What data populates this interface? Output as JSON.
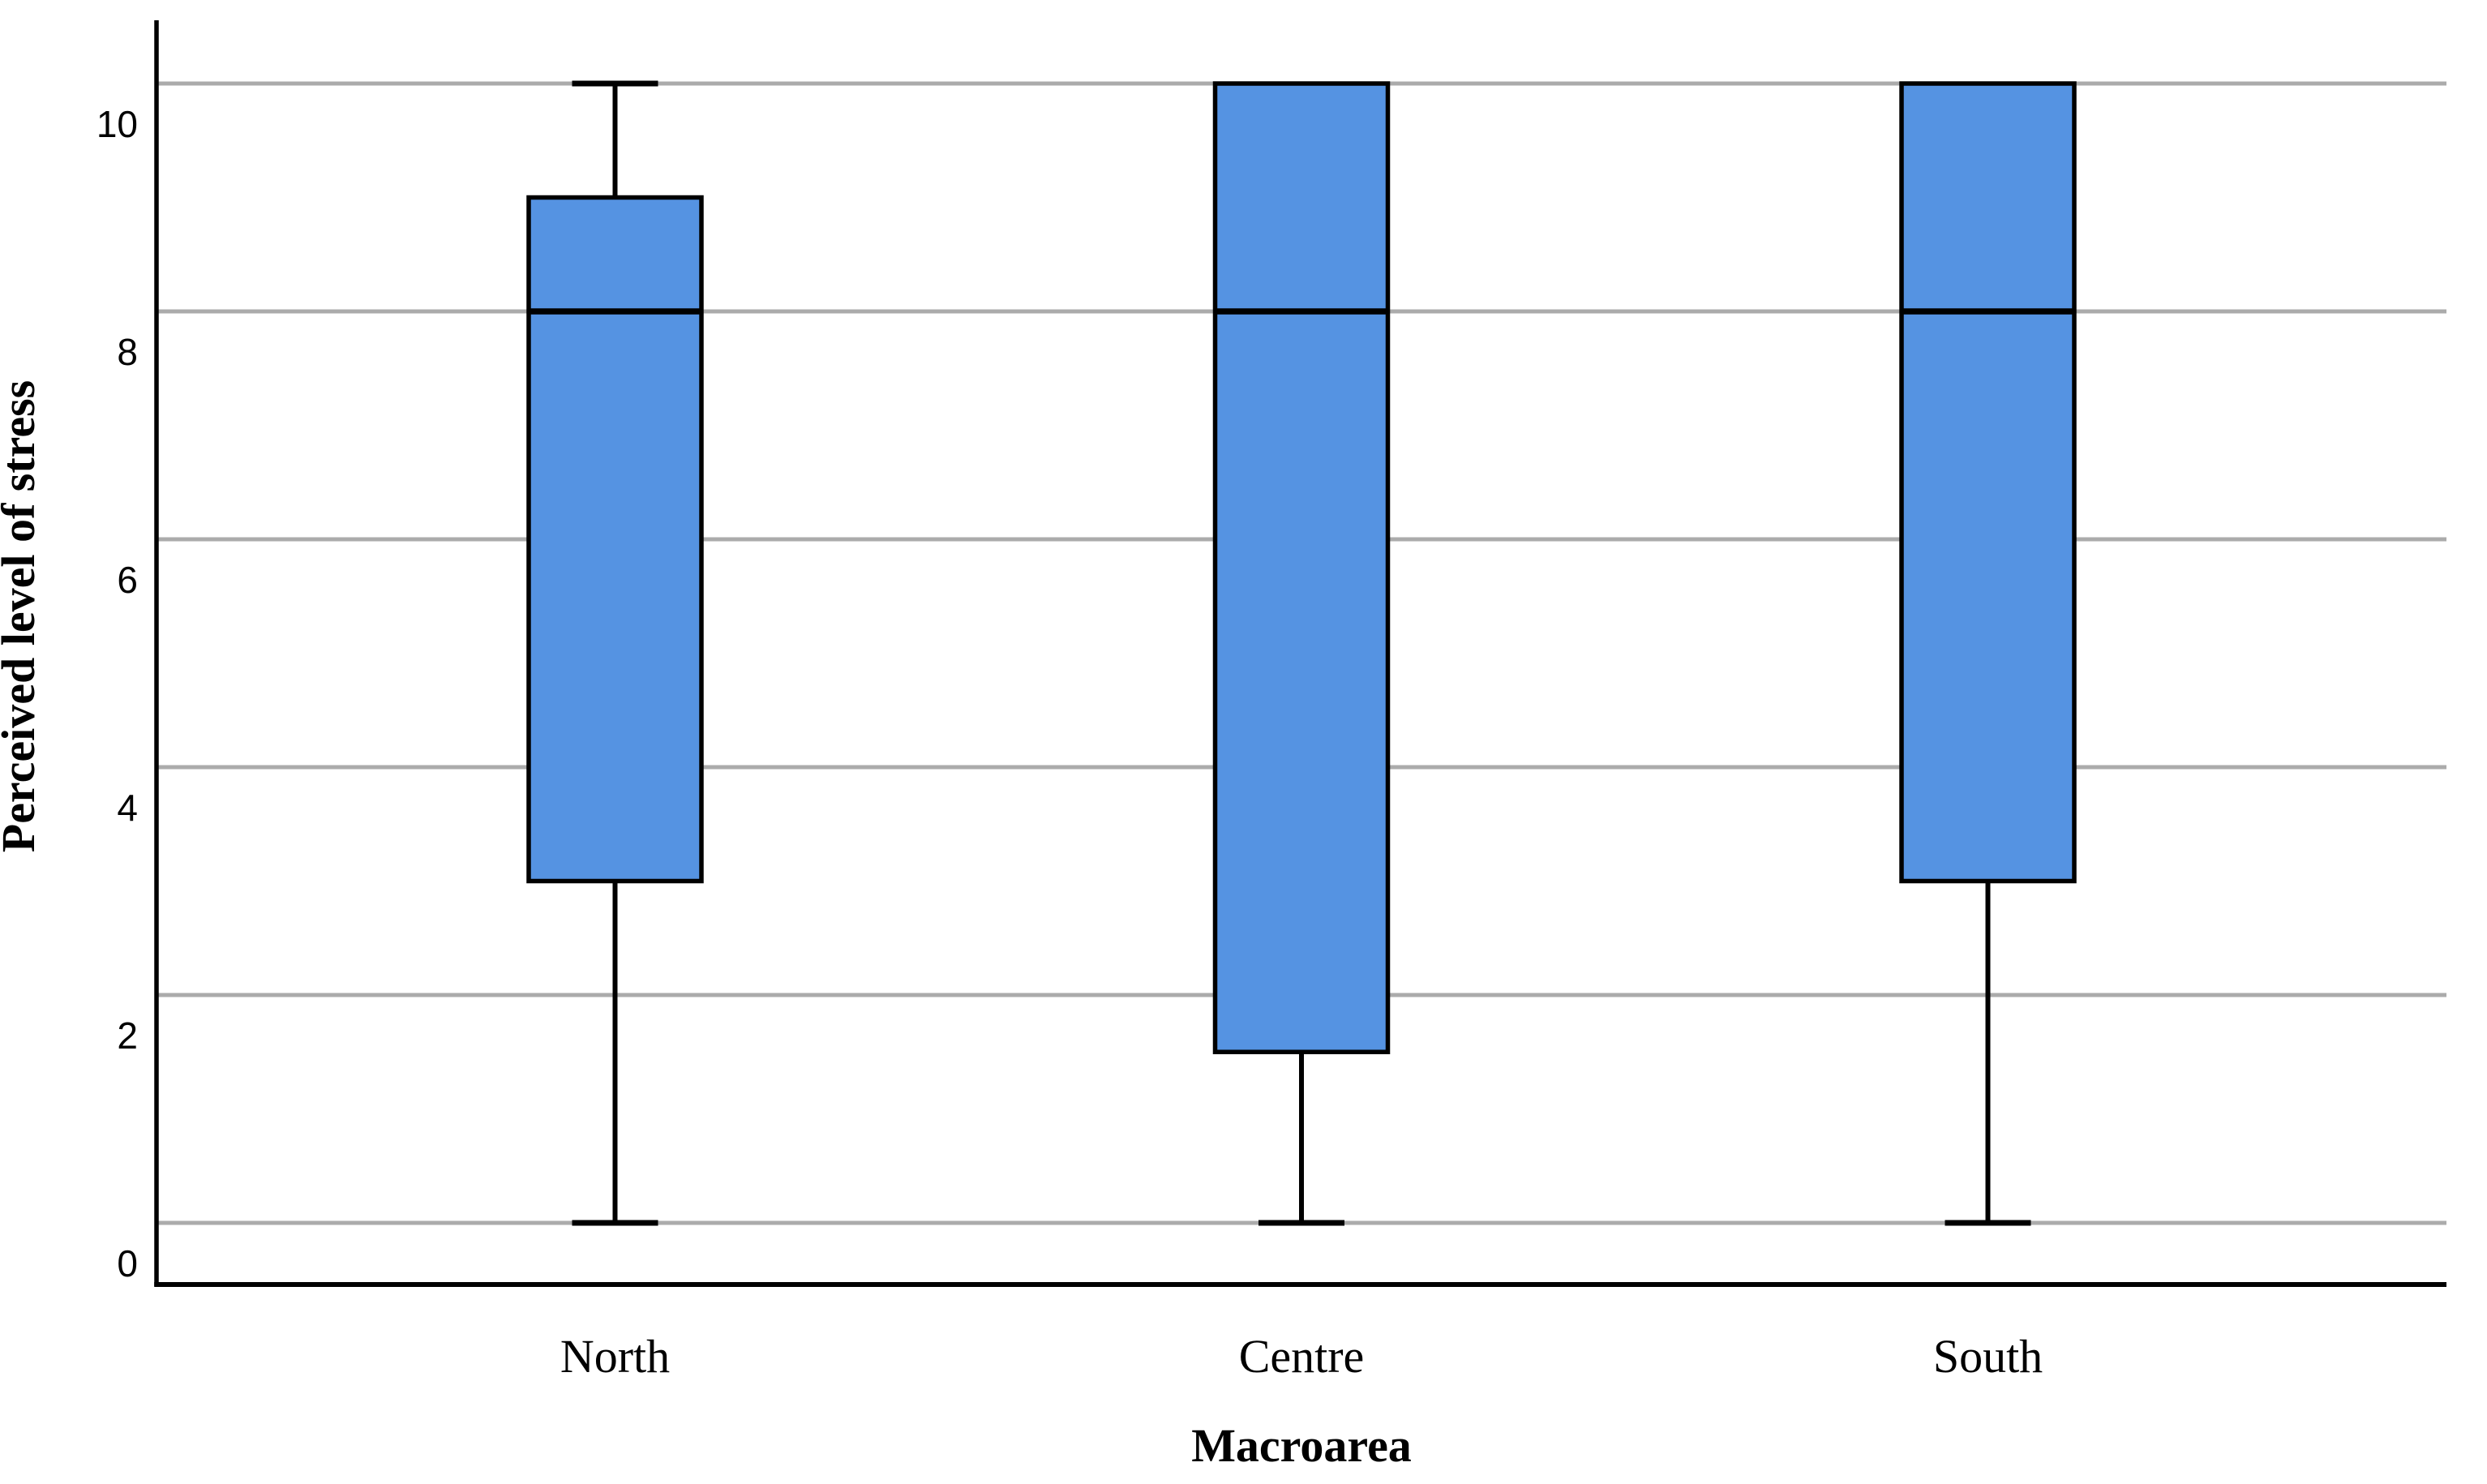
{
  "figure": {
    "kind": "statistical boxplot figure",
    "background": "#FFFFFF"
  },
  "chart_data": {
    "type": "boxplot",
    "orientation": "vertical",
    "title": "",
    "xlabel": "Macroarea",
    "ylabel": "Perceived level of stress",
    "categories": [
      "North",
      "Centre",
      "South"
    ],
    "y_ticks": [
      0,
      2,
      4,
      6,
      8,
      10
    ],
    "y_tick_labels": [
      "0",
      "2",
      "4",
      "6",
      "8",
      "10"
    ],
    "ylim": [
      -0.55,
      10.65
    ],
    "grid": "horizontal-only",
    "legend": "none",
    "series": [
      {
        "category": "North",
        "whisker_low": 0,
        "q1": 3.0,
        "median": 8.0,
        "q3": 9.0,
        "whisker_high": 10.0
      },
      {
        "category": "Centre",
        "whisker_low": 0,
        "q1": 1.5,
        "median": 8.0,
        "q3": 10.0,
        "whisker_high": 10.0
      },
      {
        "category": "South",
        "whisker_low": 0,
        "q1": 3.0,
        "median": 8.0,
        "q3": 10.0,
        "whisker_high": 10.0
      }
    ],
    "colors": {
      "box_fill": "#5593E2",
      "box_border": "#000000",
      "median_line": "#000000",
      "whisker": "#000000",
      "gridline": "#ABABAB",
      "axis_line": "#000000",
      "text": "#000000",
      "background": "#FFFFFF"
    }
  }
}
